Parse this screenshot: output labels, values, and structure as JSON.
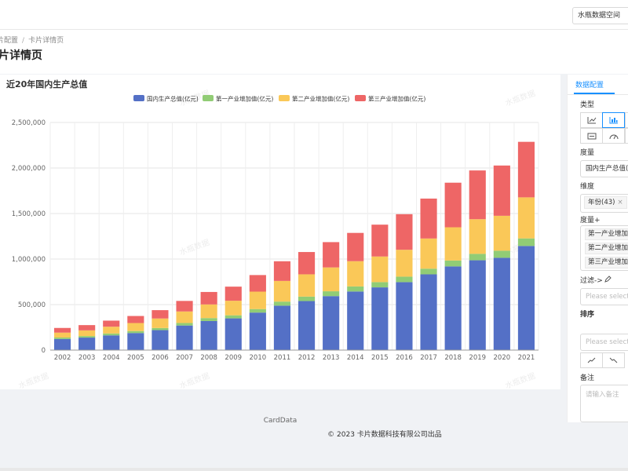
{
  "header": {
    "space_select": "水瓶数据空间"
  },
  "breadcrumb": {
    "parent": "片配置",
    "separator": "/",
    "current": "卡片详情页"
  },
  "page": {
    "title": "片详情页"
  },
  "watermark": {
    "text": "水瓶数据"
  },
  "chart_data": {
    "type": "bar",
    "stacked": true,
    "title": "近20年国内生产总值",
    "categories": [
      "2002",
      "2003",
      "2004",
      "2005",
      "2006",
      "2007",
      "2008",
      "2009",
      "2010",
      "2011",
      "2012",
      "2013",
      "2014",
      "2015",
      "2016",
      "2017",
      "2018",
      "2019",
      "2020",
      "2021"
    ],
    "series": [
      {
        "name": "国内生产总值(亿元)",
        "color": "#5470c6",
        "values": [
          121717,
          137422,
          161840,
          187319,
          219439,
          270092,
          319245,
          348518,
          412119,
          487940,
          538580,
          592963,
          643563,
          688858,
          746395,
          832036,
          919281,
          986515,
          1013567,
          1143670
        ]
      },
      {
        "name": "第一产业增加值(亿元)",
        "color": "#91cc75",
        "values": [
          16190,
          16970,
          20904,
          21806,
          23317,
          27674,
          32464,
          33584,
          38430,
          44781,
          49085,
          53028,
          55626,
          57775,
          60139,
          62100,
          64745,
          70467,
          78031,
          83086
        ]
      },
      {
        "name": "第二产业增加值(亿元)",
        "color": "#fac858",
        "values": [
          54105,
          62436,
          74286,
          88084,
          104362,
          126630,
          149952,
          160168,
          191626,
          227035,
          244639,
          261951,
          277282,
          281339,
          295428,
          331581,
          364835,
          380671,
          383562,
          450904
        ]
      },
      {
        "name": "第三产业增加值(亿元)",
        "color": "#ee6666",
        "values": [
          51421,
          57755,
          66648,
          77428,
          91760,
          115787,
          136823,
          154765,
          182062,
          216119,
          244856,
          277984,
          310654,
          349745,
          390828,
          438356,
          489701,
          535372,
          551974,
          609680
        ]
      }
    ],
    "y_ticks": [
      "0",
      "500,000",
      "1,000,000",
      "1,500,000",
      "2,000,000",
      "2,500,000"
    ],
    "ylim": [
      0,
      2500000
    ],
    "grid": true,
    "legend_position": "top-center"
  },
  "footer": {
    "brand": "CardData",
    "copyright": "© 2023 卡片数据科技有限公司出品"
  },
  "panel": {
    "tab": "数据配置",
    "type_label": "类型",
    "measure_label": "度量",
    "measure_value": "国内生产总值(亿元)",
    "dimension_label": "维度",
    "dimension_tag": "年份(43)",
    "dimension_tag_close": "×",
    "measure_plus_label": "度量+",
    "measure_plus_tags": [
      "第一产业增加值(亿元)",
      "第二产业增加值(亿元)",
      "第三产业增加值(亿元)"
    ],
    "filter_label": "过滤->",
    "filter_placeholder": "Please select",
    "sort_label": "排序",
    "sort_placeholder": "Please select",
    "remark_label": "备注",
    "remark_placeholder": "请输入备注"
  }
}
